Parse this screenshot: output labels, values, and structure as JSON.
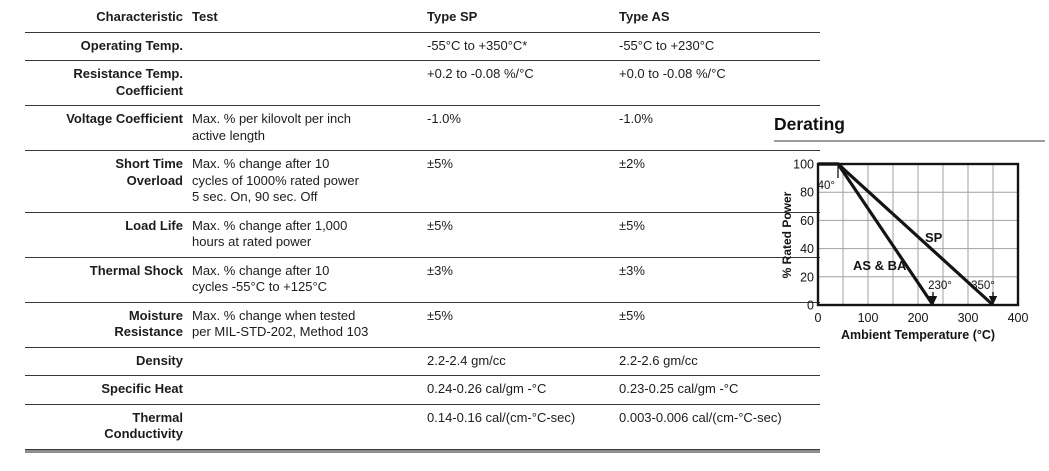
{
  "table": {
    "headers": [
      "Characteristic",
      "Test",
      "Type SP",
      "Type AS"
    ],
    "rows": [
      {
        "characteristic": "Operating Temp.",
        "test": "",
        "sp": "-55°C to +350°C*",
        "as": "-55°C to +230°C"
      },
      {
        "characteristic": "Resistance Temp.\nCoefficient",
        "test": "",
        "sp": "+0.2 to -0.08 %/°C",
        "as": "+0.0 to -0.08 %/°C"
      },
      {
        "characteristic": "Voltage Coefficient",
        "test": "Max. % per kilovolt per inch\nactive length",
        "sp": "-1.0%",
        "as": "-1.0%"
      },
      {
        "characteristic": "Short Time\nOverload",
        "test": "Max. % change after 10\ncycles of 1000% rated power\n5 sec. On, 90 sec. Off",
        "sp": "±5%",
        "as": "±2%"
      },
      {
        "characteristic": "Load Life",
        "test": "Max. % change after 1,000\nhours at rated power",
        "sp": "±5%",
        "as": "±5%"
      },
      {
        "characteristic": "Thermal Shock",
        "test": "Max. % change after 10\ncycles -55°C to +125°C",
        "sp": "±3%",
        "as": "±3%"
      },
      {
        "characteristic": "Moisture\nResistance",
        "test": "Max. % change when tested\nper MIL-STD-202, Method 103",
        "sp": "±5%",
        "as": "±5%"
      },
      {
        "characteristic": "Density",
        "test": "",
        "sp": "2.2-2.4 gm/cc",
        "as": "2.2-2.6 gm/cc"
      },
      {
        "characteristic": "Specific Heat",
        "test": "",
        "sp": "0.24-0.26 cal/gm -°C",
        "as": "0.23-0.25 cal/gm -°C"
      },
      {
        "characteristic": "Thermal\nConductivity",
        "test": "",
        "sp": "0.14-0.16 cal/(cm-°C-sec)",
        "as": "0.003-0.006 cal/(cm-°C-sec)"
      }
    ]
  },
  "derating": {
    "title": "Derating"
  },
  "chart_data": {
    "type": "line",
    "title": "Derating",
    "xlabel": "Ambient Temperature (°C)",
    "ylabel": "% Rated Power",
    "xlim": [
      0,
      400
    ],
    "ylim": [
      0,
      100
    ],
    "xticks": [
      0,
      100,
      200,
      300,
      400
    ],
    "yticks": [
      0,
      20,
      40,
      60,
      80,
      100
    ],
    "grid": true,
    "grid_step_x": 50,
    "grid_step_y": 20,
    "series": [
      {
        "name": "SP",
        "points": [
          [
            0,
            100
          ],
          [
            40,
            100
          ],
          [
            350,
            0
          ]
        ]
      },
      {
        "name": "AS & BA",
        "points": [
          [
            0,
            100
          ],
          [
            40,
            100
          ],
          [
            230,
            0
          ]
        ]
      }
    ],
    "annotations": [
      {
        "text": "40°",
        "x": 40,
        "y": 100
      },
      {
        "text": "230°",
        "x": 230,
        "y": 0
      },
      {
        "text": "350°",
        "x": 350,
        "y": 0
      }
    ],
    "line_color": "#141414",
    "grid_color": "#a0a0a0"
  }
}
